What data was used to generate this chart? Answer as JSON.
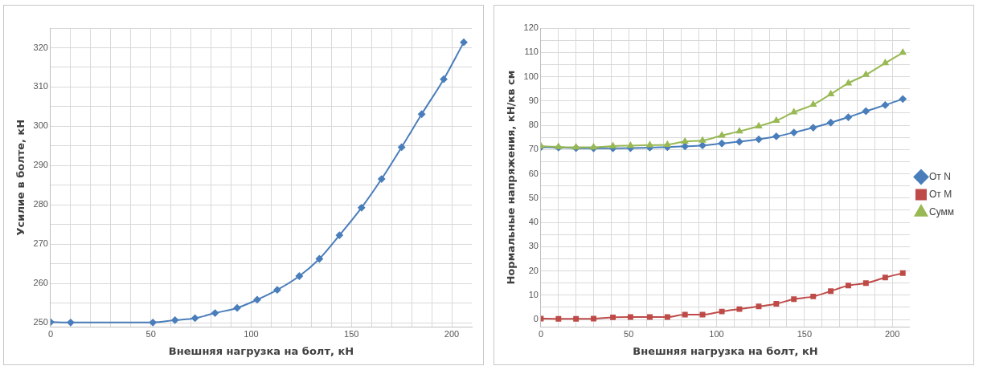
{
  "chart_data": [
    {
      "type": "line",
      "xlabel": "Внешняя нагрузка на болт, кН",
      "ylabel": "Усилие в болте, кН",
      "marker": "diamond",
      "grid": true,
      "legend": false,
      "xlim": [
        0,
        210
      ],
      "xticks": [
        0,
        {
          "value": 10,
          "label": null
        },
        {
          "value": 20,
          "label": null
        },
        {
          "value": 30,
          "label": null
        },
        {
          "value": 40,
          "label": null
        },
        50,
        {
          "value": 60,
          "label": null
        },
        {
          "value": 70,
          "label": null
        },
        {
          "value": 80,
          "label": null
        },
        {
          "value": 90,
          "label": null
        },
        100,
        {
          "value": 110,
          "label": null
        },
        {
          "value": 120,
          "label": null
        },
        {
          "value": 130,
          "label": null
        },
        {
          "value": 140,
          "label": null
        },
        150,
        {
          "value": 160,
          "label": null
        },
        {
          "value": 170,
          "label": null
        },
        {
          "value": 180,
          "label": null
        },
        {
          "value": 190,
          "label": null
        },
        200
      ],
      "ylim": [
        249,
        325
      ],
      "yticks": [
        250,
        {
          "value": 255,
          "label": null
        },
        260,
        {
          "value": 265,
          "label": null
        },
        270,
        {
          "value": 275,
          "label": null
        },
        280,
        {
          "value": 285,
          "label": null
        },
        290,
        {
          "value": 295,
          "label": null
        },
        300,
        {
          "value": 305,
          "label": null
        },
        310,
        {
          "value": 315,
          "label": null
        },
        320,
        {
          "value": 325,
          "label": null
        }
      ],
      "x": [
        0,
        10,
        51,
        62,
        72,
        82,
        93,
        103,
        113,
        124,
        134,
        144,
        155,
        165,
        175,
        185,
        196,
        206
      ],
      "series": [
        {
          "color": "#4a7ebb",
          "values": [
            250.2,
            250.1,
            250.1,
            250.7,
            251.2,
            252.5,
            253.8,
            255.9,
            258.4,
            261.9,
            266.3,
            272.3,
            279.3,
            286.6,
            294.7,
            303.1,
            312.0,
            321.4
          ]
        }
      ]
    },
    {
      "type": "line",
      "xlabel": "Внешняя нагрузка на болт, кН",
      "ylabel": "Нормальные напряжения, кН/кв см",
      "grid": true,
      "legend": "right",
      "xlim": [
        0,
        210
      ],
      "xticks": [
        0,
        {
          "value": 10,
          "label": null
        },
        {
          "value": 20,
          "label": null
        },
        {
          "value": 30,
          "label": null
        },
        {
          "value": 40,
          "label": null
        },
        50,
        {
          "value": 60,
          "label": null
        },
        {
          "value": 70,
          "label": null
        },
        {
          "value": 80,
          "label": null
        },
        {
          "value": 90,
          "label": null
        },
        100,
        {
          "value": 110,
          "label": null
        },
        {
          "value": 120,
          "label": null
        },
        {
          "value": 130,
          "label": null
        },
        {
          "value": 140,
          "label": null
        },
        150,
        {
          "value": 160,
          "label": null
        },
        {
          "value": 170,
          "label": null
        },
        {
          "value": 180,
          "label": null
        },
        {
          "value": 190,
          "label": null
        },
        200
      ],
      "ylim": [
        -3,
        120
      ],
      "yticks": [
        0,
        {
          "value": 5,
          "label": null
        },
        10,
        {
          "value": 15,
          "label": null
        },
        20,
        {
          "value": 25,
          "label": null
        },
        30,
        {
          "value": 35,
          "label": null
        },
        40,
        {
          "value": 45,
          "label": null
        },
        50,
        {
          "value": 55,
          "label": null
        },
        60,
        {
          "value": 65,
          "label": null
        },
        70,
        {
          "value": 75,
          "label": null
        },
        80,
        {
          "value": 85,
          "label": null
        },
        90,
        {
          "value": 95,
          "label": null
        },
        100,
        {
          "value": 105,
          "label": null
        },
        110,
        {
          "value": 115,
          "label": null
        },
        120
      ],
      "x": [
        0,
        10,
        20,
        30,
        41,
        51,
        62,
        72,
        82,
        92,
        103,
        113,
        124,
        134,
        144,
        155,
        165,
        175,
        185,
        196,
        206
      ],
      "series": [
        {
          "name": "От N",
          "color": "#4a7ebb",
          "marker": "diamond",
          "values": [
            71,
            70.8,
            70.6,
            70.5,
            70.5,
            70.6,
            70.8,
            71,
            71.3,
            71.7,
            72.5,
            73.2,
            74.2,
            75.4,
            77,
            79,
            81.1,
            83.3,
            85.8,
            88.3,
            90.8
          ]
        },
        {
          "name": "От M",
          "color": "#be4b48",
          "marker": "square",
          "values": [
            0.4,
            0.3,
            0.3,
            0.4,
            0.9,
            1,
            1,
            1,
            2,
            2,
            3.3,
            4.3,
            5.4,
            6.5,
            8.4,
            9.5,
            11.7,
            14,
            15,
            17.3,
            19.1
          ]
        },
        {
          "name": "Сумм",
          "color": "#98b954",
          "marker": "triangle",
          "values": [
            71.4,
            71.1,
            70.9,
            70.9,
            71.4,
            71.6,
            71.8,
            72,
            73.3,
            73.7,
            75.8,
            77.5,
            79.6,
            81.9,
            85.4,
            88.5,
            92.8,
            97.3,
            100.8,
            105.6,
            109.9
          ]
        }
      ]
    }
  ]
}
